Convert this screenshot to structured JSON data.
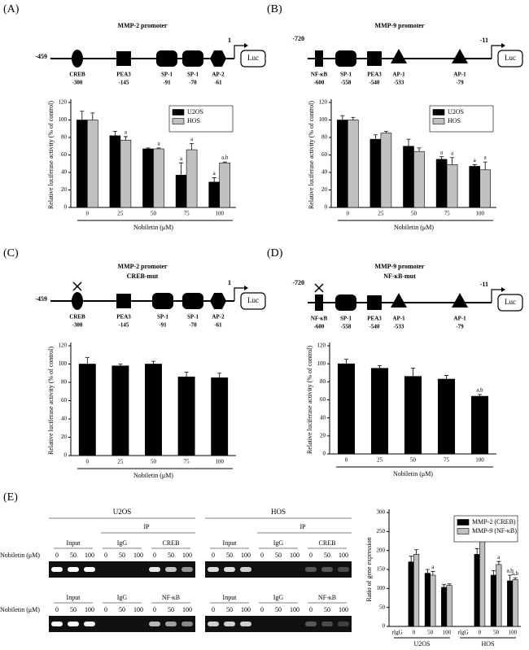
{
  "panels": [
    "(A)",
    "(B)",
    "(C)",
    "(D)",
    "(E)"
  ],
  "promoters": [
    {
      "title": "MMP-2 promoter",
      "start": "-459",
      "end": "1",
      "reporter": "Luc",
      "elements": [
        {
          "name": "CREB",
          "position": "-300",
          "shape": "ellipse"
        },
        {
          "name": "PEA3",
          "position": "-145",
          "shape": "square"
        },
        {
          "name": "SP-1",
          "position": "-91",
          "shape": "rounded"
        },
        {
          "name": "SP-1",
          "position": "-70",
          "shape": "rounded"
        },
        {
          "name": "AP-2",
          "position": "-61",
          "shape": "hexagon"
        }
      ]
    },
    {
      "title": "MMP-9 promoter",
      "start": "-720",
      "end": "-11",
      "reporter": "Luc",
      "elements": [
        {
          "name": "NF-κB",
          "position": "-600",
          "shape": "rect"
        },
        {
          "name": "SP-1",
          "position": "-558",
          "shape": "rounded"
        },
        {
          "name": "PEA3",
          "position": "-540",
          "shape": "square"
        },
        {
          "name": "AP-1",
          "position": "-533",
          "shape": "triangle"
        },
        {
          "name": "AP-1",
          "position": "-79",
          "shape": "triangle"
        }
      ]
    },
    {
      "title": "MMP-2 promoter",
      "subtitle": "CREB-mut",
      "start": "-459",
      "end": "1",
      "reporter": "Luc",
      "elements": [
        {
          "name": "CREB",
          "position": "-300",
          "shape": "ellipse",
          "mutated": true
        },
        {
          "name": "PEA3",
          "position": "-145",
          "shape": "square"
        },
        {
          "name": "SP-1",
          "position": "-91",
          "shape": "rounded"
        },
        {
          "name": "SP-1",
          "position": "-70",
          "shape": "rounded"
        },
        {
          "name": "AP-2",
          "position": "-61",
          "shape": "hexagon"
        }
      ]
    },
    {
      "title": "MMP-9 promoter",
      "subtitle": "NF-κB-mut",
      "start": "-720",
      "end": "-11",
      "reporter": "Luc",
      "elements": [
        {
          "name": "NF-κB",
          "position": "-600",
          "shape": "rect",
          "mutated": true
        },
        {
          "name": "SP-1",
          "position": "-558",
          "shape": "rounded"
        },
        {
          "name": "PEA3",
          "position": "-540",
          "shape": "square"
        },
        {
          "name": "AP-1",
          "position": "-533",
          "shape": "triangle"
        },
        {
          "name": "AP-1",
          "position": "-79",
          "shape": "triangle"
        }
      ]
    }
  ],
  "chip": {
    "cell_lines": [
      "U2OS",
      "HOS"
    ],
    "ip_label": "IP",
    "dose_label": "Nobiletin (μM)",
    "doses": [
      "0",
      "50",
      "100"
    ],
    "rows": [
      [
        "Input",
        "IgG",
        "CREB"
      ],
      [
        "Input",
        "IgG",
        "NF-κB"
      ]
    ]
  },
  "chart_data": [
    {
      "type": "bar",
      "categories": [
        "0",
        "25",
        "50",
        "75",
        "100"
      ],
      "x_label": "Nobiletin (μM)",
      "y_label": "Relative luciferase activity (% of control)",
      "ylim": [
        0,
        120
      ],
      "yticks": [
        0,
        20,
        40,
        60,
        80,
        100,
        120
      ],
      "legend": "upper right",
      "series": [
        {
          "name": "U2OS",
          "color": "#000000",
          "values": [
            100,
            82,
            67,
            37,
            29
          ],
          "errors": [
            10,
            5,
            1,
            14,
            5
          ],
          "annotations": [
            null,
            null,
            null,
            "a",
            "a"
          ]
        },
        {
          "name": "HOS",
          "color": "#c0c0c0",
          "values": [
            100,
            77,
            67,
            66,
            51
          ],
          "errors": [
            8,
            4,
            1,
            7,
            1
          ],
          "annotations": [
            null,
            "a",
            "a",
            "a",
            "a,b"
          ]
        }
      ]
    },
    {
      "type": "bar",
      "categories": [
        "0",
        "25",
        "50",
        "75",
        "100"
      ],
      "x_label": "Nobiletin (μM)",
      "y_label": "Relative luciferase activity (% of control)",
      "ylim": [
        0,
        120
      ],
      "yticks": [
        0,
        20,
        40,
        60,
        80,
        100,
        120
      ],
      "legend": "upper right",
      "series": [
        {
          "name": "U2OS",
          "color": "#000000",
          "values": [
            100,
            78,
            70,
            55,
            47
          ],
          "errors": [
            5,
            5,
            8,
            3,
            2
          ],
          "annotations": [
            null,
            null,
            null,
            "a",
            "a"
          ]
        },
        {
          "name": "HOS",
          "color": "#c0c0c0",
          "values": [
            100,
            85,
            64,
            49,
            43
          ],
          "errors": [
            3,
            2,
            4,
            8,
            9
          ],
          "annotations": [
            null,
            null,
            null,
            "a",
            "a"
          ]
        }
      ]
    },
    {
      "type": "bar",
      "categories": [
        "0",
        "25",
        "50",
        "75",
        "100"
      ],
      "x_label": "Nobiletin (μM)",
      "y_label": "Relative luciferase activity (% of control)",
      "ylim": [
        0,
        120
      ],
      "yticks": [
        0,
        20,
        40,
        60,
        80,
        100,
        120
      ],
      "color": "#000000",
      "values": [
        100,
        98,
        100,
        86,
        85
      ],
      "errors": [
        7,
        2,
        3,
        5,
        5
      ]
    },
    {
      "type": "bar",
      "categories": [
        "0",
        "25",
        "50",
        "75",
        "100"
      ],
      "x_label": "Nobiletin (μM)",
      "y_label": "Relative luciferase activity (% of control)",
      "ylim": [
        0,
        120
      ],
      "yticks": [
        0,
        20,
        40,
        60,
        80,
        100,
        120
      ],
      "color": "#000000",
      "values": [
        100,
        95,
        86,
        83,
        64
      ],
      "errors": [
        5,
        3,
        9,
        4,
        2
      ],
      "annotations": [
        null,
        null,
        null,
        null,
        "a,b"
      ]
    },
    {
      "type": "bar",
      "categories": [
        "rIgG",
        "0",
        "50",
        "100",
        "rIgG",
        "0",
        "50",
        "100"
      ],
      "group_labels": [
        "U2OS",
        "HOS"
      ],
      "y_label": "Ratio of gene expression",
      "ylim": [
        0,
        300
      ],
      "yticks": [
        0,
        50,
        100,
        150,
        200,
        250,
        300
      ],
      "legend": "upper right",
      "series": [
        {
          "name": "MMP-2 (CREB)",
          "color": "#000000",
          "values": [
            0,
            170,
            140,
            103,
            0,
            190,
            135,
            120
          ],
          "errors": [
            0,
            15,
            10,
            7,
            0,
            15,
            12,
            15
          ],
          "annotations": [
            null,
            null,
            null,
            null,
            null,
            null,
            null,
            "a,b"
          ]
        },
        {
          "name": "MMP-9 (NF-κB)",
          "color": "#c0c0c0",
          "values": [
            0,
            190,
            135,
            108,
            0,
            255,
            163,
            123
          ],
          "errors": [
            0,
            12,
            10,
            4,
            0,
            5,
            8,
            5
          ],
          "annotations": [
            null,
            null,
            "a",
            null,
            null,
            null,
            "a",
            "a,b"
          ]
        }
      ]
    }
  ]
}
